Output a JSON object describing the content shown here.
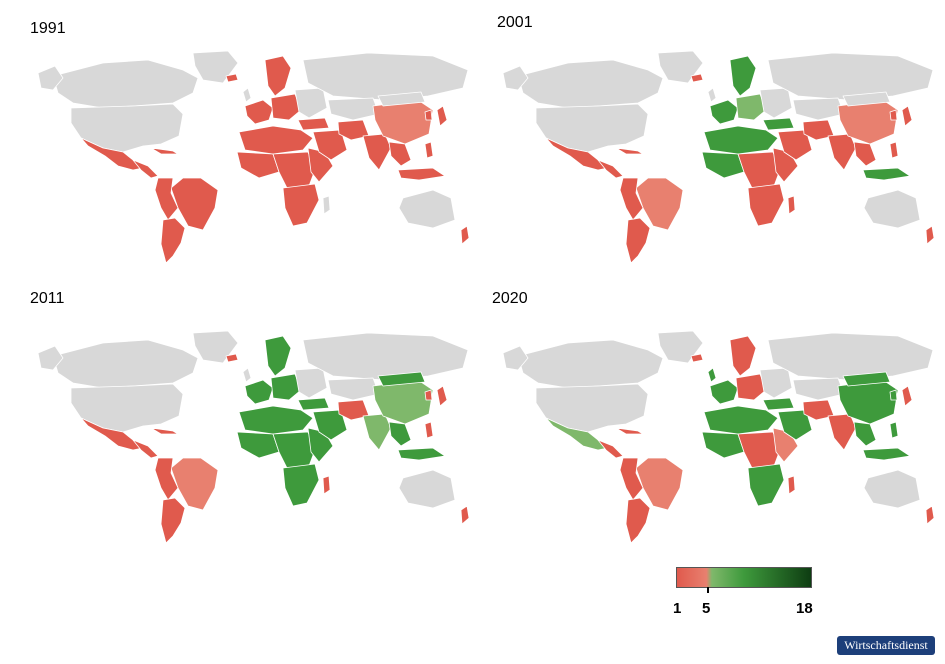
{
  "panels": [
    {
      "year": "1991",
      "variant": "y1991"
    },
    {
      "year": "2001",
      "variant": "y2001"
    },
    {
      "year": "2011",
      "variant": "y2011"
    },
    {
      "year": "2020",
      "variant": "y2020"
    }
  ],
  "legend": {
    "min_label": "1",
    "mid_label": "5",
    "max_label": "18",
    "min_value": 1,
    "mid_value": 5,
    "max_value": 18,
    "colors": {
      "red": "#e05a4d",
      "light_red": "#e8806f",
      "light_green": "#7fb86b",
      "green": "#3e9a3c",
      "dark_green": "#0e3d12",
      "no_data": "#d8d8d8"
    }
  },
  "brand": {
    "label": "Wirtschaftsdienst",
    "color": "#1d3f7a"
  }
}
